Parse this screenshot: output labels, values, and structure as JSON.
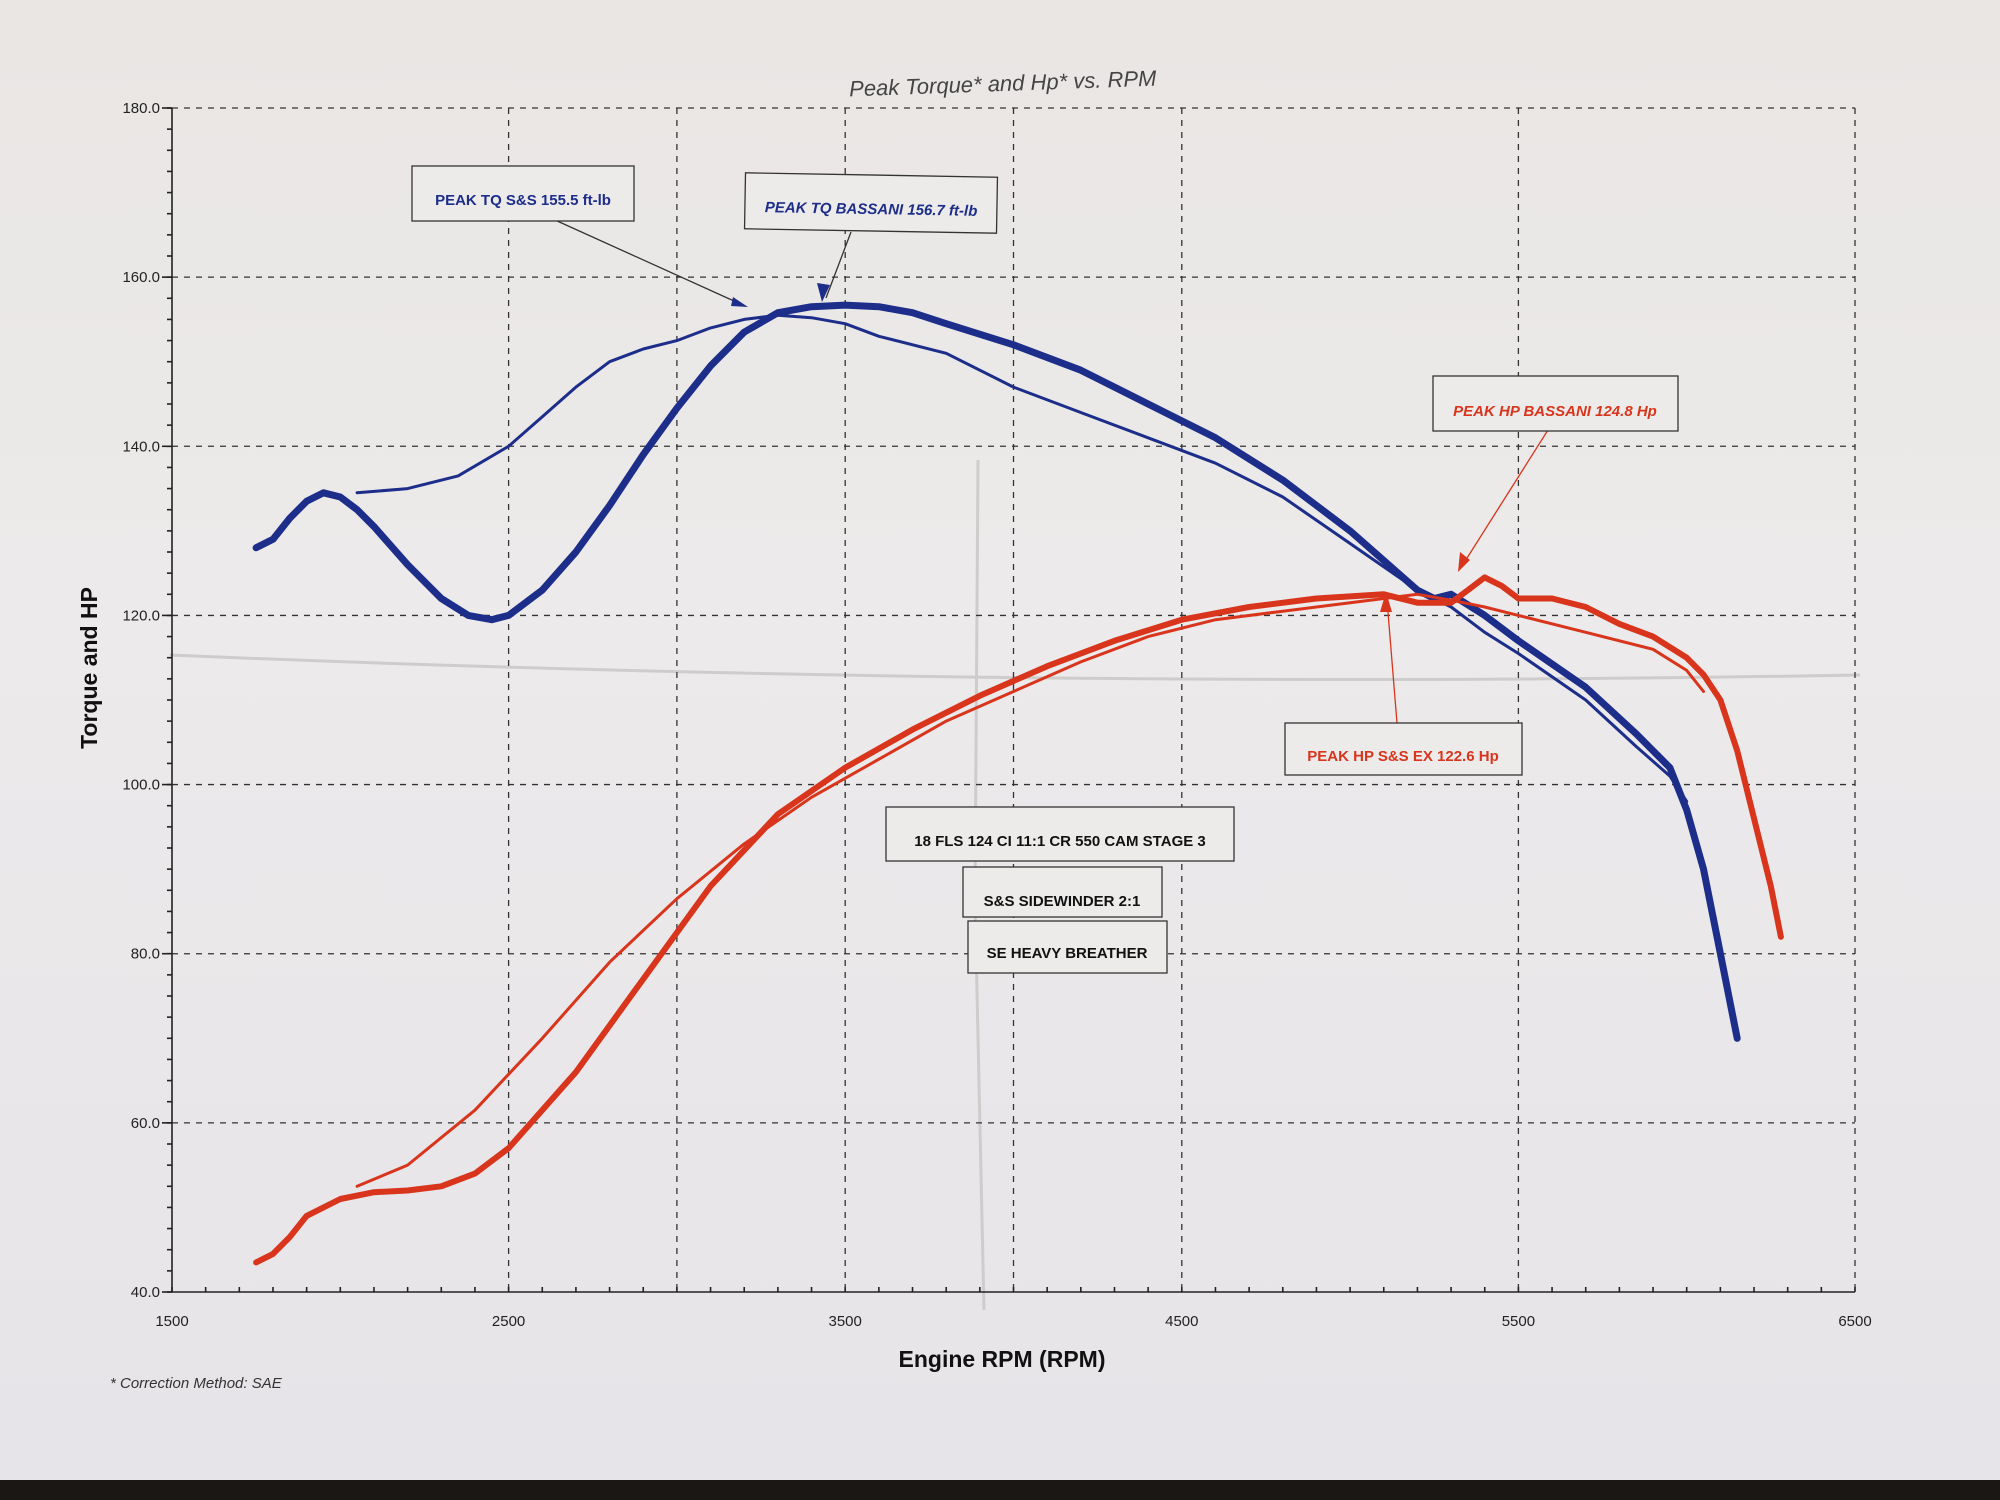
{
  "colors": {
    "torque": "#1c2d8a",
    "hp": "#d8351c",
    "text": "#222222"
  },
  "footnote": "* Correction Method: SAE",
  "annotations": [
    {
      "text": "PEAK TQ S&S  155.5 ft-lb",
      "color": "#1c2d8a"
    },
    {
      "text": "PEAK TQ BASSANI 156.7 ft-lb",
      "color": "#1c2d8a"
    },
    {
      "text": "PEAK HP BASSANI 124.8 Hp",
      "color": "#d8351c"
    },
    {
      "text": "PEAK HP S&S EX 122.6 Hp",
      "color": "#d8351c"
    },
    {
      "text": "18 FLS 124 CI 11:1 CR  550 CAM STAGE 3",
      "color": "#111111"
    },
    {
      "text": "S&S SIDEWINDER 2:1",
      "color": "#111111"
    },
    {
      "text": "SE HEAVY BREATHER",
      "color": "#111111"
    }
  ],
  "chart_data": {
    "type": "line",
    "title": "Peak Torque* and Hp* vs. RPM",
    "xlabel": "Engine RPM (RPM)",
    "ylabel": "Torque and HP",
    "xlim": [
      1500,
      6500
    ],
    "ylim": [
      40,
      180
    ],
    "x_ticks": [
      "1500",
      "2500",
      "3500",
      "4500",
      "5500",
      "6500"
    ],
    "y_ticks": [
      "40.0",
      "60.0",
      "80.0",
      "100.0",
      "120.0",
      "140.0",
      "160.0",
      "180.0"
    ],
    "grid": true,
    "series": [
      {
        "kind": "torque",
        "points": [
          [
            1750,
            128
          ],
          [
            1800,
            129
          ],
          [
            1850,
            131.5
          ],
          [
            1900,
            133.5
          ],
          [
            1950,
            134.5
          ],
          [
            2000,
            134
          ],
          [
            2050,
            132.5
          ],
          [
            2100,
            130.5
          ],
          [
            2200,
            126
          ],
          [
            2300,
            122
          ],
          [
            2380,
            120
          ],
          [
            2450,
            119.5
          ],
          [
            2500,
            120
          ],
          [
            2600,
            123
          ],
          [
            2700,
            127.5
          ],
          [
            2800,
            133
          ],
          [
            2900,
            139
          ],
          [
            3000,
            144.5
          ],
          [
            3100,
            149.5
          ],
          [
            3200,
            153.5
          ],
          [
            3300,
            155.8
          ],
          [
            3400,
            156.5
          ],
          [
            3500,
            156.7
          ],
          [
            3600,
            156.5
          ],
          [
            3700,
            155.8
          ],
          [
            3800,
            154.5
          ],
          [
            4000,
            152
          ],
          [
            4200,
            149
          ],
          [
            4400,
            145
          ],
          [
            4600,
            141
          ],
          [
            4800,
            136
          ],
          [
            5000,
            130
          ],
          [
            5200,
            123
          ],
          [
            5250,
            122
          ],
          [
            5300,
            122.5
          ],
          [
            5400,
            120
          ],
          [
            5500,
            117
          ],
          [
            5700,
            111.5
          ],
          [
            5850,
            106
          ],
          [
            5950,
            102
          ],
          [
            6000,
            97
          ],
          [
            6050,
            90
          ],
          [
            6100,
            80
          ],
          [
            6150,
            70
          ]
        ]
      },
      {
        "kind": "torque",
        "points": [
          [
            2050,
            134.5
          ],
          [
            2200,
            135
          ],
          [
            2350,
            136.5
          ],
          [
            2500,
            140
          ],
          [
            2600,
            143.5
          ],
          [
            2700,
            147
          ],
          [
            2800,
            150
          ],
          [
            2900,
            151.5
          ],
          [
            3000,
            152.5
          ],
          [
            3100,
            154
          ],
          [
            3200,
            155
          ],
          [
            3300,
            155.5
          ],
          [
            3400,
            155.2
          ],
          [
            3500,
            154.5
          ],
          [
            3600,
            153
          ],
          [
            3800,
            151
          ],
          [
            4000,
            147
          ],
          [
            4200,
            144
          ],
          [
            4400,
            141
          ],
          [
            4600,
            138
          ],
          [
            4800,
            134
          ],
          [
            5000,
            128.5
          ],
          [
            5200,
            123
          ],
          [
            5300,
            121
          ],
          [
            5400,
            118
          ],
          [
            5500,
            115.5
          ],
          [
            5700,
            110
          ],
          [
            5850,
            104.5
          ],
          [
            5950,
            101
          ],
          [
            6000,
            98
          ]
        ]
      },
      {
        "kind": "hp",
        "points": [
          [
            1750,
            43.5
          ],
          [
            1800,
            44.5
          ],
          [
            1850,
            46.5
          ],
          [
            1900,
            49
          ],
          [
            2000,
            51
          ],
          [
            2100,
            51.8
          ],
          [
            2200,
            52
          ],
          [
            2300,
            52.5
          ],
          [
            2400,
            54
          ],
          [
            2500,
            57
          ],
          [
            2700,
            66
          ],
          [
            2900,
            77
          ],
          [
            3100,
            88
          ],
          [
            3300,
            96.5
          ],
          [
            3500,
            102
          ],
          [
            3700,
            106.5
          ],
          [
            3900,
            110.5
          ],
          [
            4100,
            114
          ],
          [
            4300,
            117
          ],
          [
            4500,
            119.5
          ],
          [
            4700,
            121
          ],
          [
            4900,
            122
          ],
          [
            5100,
            122.5
          ],
          [
            5200,
            121.5
          ],
          [
            5300,
            121.5
          ],
          [
            5350,
            123
          ],
          [
            5400,
            124.5
          ],
          [
            5450,
            123.5
          ],
          [
            5500,
            122
          ],
          [
            5600,
            122
          ],
          [
            5700,
            121
          ],
          [
            5800,
            119
          ],
          [
            5900,
            117.5
          ],
          [
            6000,
            115
          ],
          [
            6050,
            113
          ],
          [
            6100,
            110
          ],
          [
            6150,
            104
          ],
          [
            6200,
            96
          ],
          [
            6250,
            88
          ],
          [
            6280,
            82
          ]
        ]
      },
      {
        "kind": "hp",
        "points": [
          [
            2050,
            52.5
          ],
          [
            2200,
            55
          ],
          [
            2400,
            61.5
          ],
          [
            2600,
            70
          ],
          [
            2800,
            79
          ],
          [
            3000,
            86.5
          ],
          [
            3200,
            93
          ],
          [
            3400,
            98.5
          ],
          [
            3600,
            103
          ],
          [
            3800,
            107.5
          ],
          [
            4000,
            111
          ],
          [
            4200,
            114.5
          ],
          [
            4400,
            117.5
          ],
          [
            4600,
            119.5
          ],
          [
            4800,
            120.5
          ],
          [
            5000,
            121.5
          ],
          [
            5200,
            122.5
          ],
          [
            5300,
            121.8
          ],
          [
            5400,
            121
          ],
          [
            5500,
            120
          ],
          [
            5700,
            118
          ],
          [
            5900,
            116
          ],
          [
            6000,
            113.5
          ],
          [
            6050,
            111
          ]
        ]
      }
    ]
  }
}
